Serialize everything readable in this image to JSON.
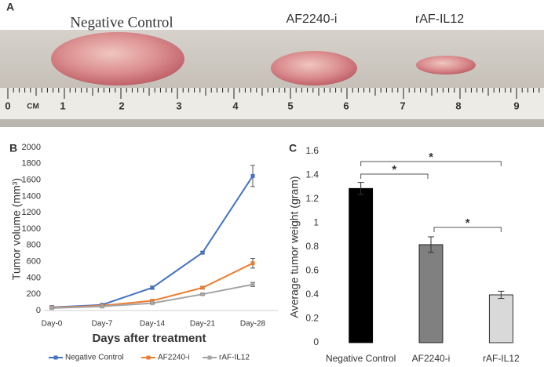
{
  "photo": {
    "label": "A",
    "captions": [
      "Negative Control",
      "AF2240-i",
      "rAF-IL12"
    ],
    "ruler": [
      "0",
      "CM",
      "1",
      "2",
      "3",
      "4",
      "5",
      "6",
      "7",
      "8",
      "9"
    ]
  },
  "chart_data": [
    {
      "type": "line",
      "panel_label": "B",
      "xlabel": "Days after treatment",
      "ylabel": "Tumor volume (mm³)",
      "categories": [
        "Day-0",
        "Day-7",
        "Day-14",
        "Day-21",
        "Day-28"
      ],
      "ylim": [
        0,
        2000
      ],
      "yticks": [
        0,
        200,
        400,
        600,
        800,
        1000,
        1200,
        1400,
        1600,
        1800,
        2000
      ],
      "legend": "bottom",
      "series": [
        {
          "name": "Negative Control",
          "color": "#4472c4",
          "values": [
            40,
            70,
            280,
            710,
            1650
          ],
          "errors": [
            20,
            15,
            20,
            15,
            130
          ]
        },
        {
          "name": "AF2240-i",
          "color": "#ed7d31",
          "values": [
            35,
            60,
            120,
            280,
            580
          ],
          "errors": [
            10,
            10,
            15,
            15,
            60
          ]
        },
        {
          "name": "rAF-IL12",
          "color": "#a5a5a5",
          "values": [
            30,
            50,
            90,
            200,
            320
          ],
          "errors": [
            10,
            10,
            10,
            10,
            25
          ]
        }
      ]
    },
    {
      "type": "bar",
      "panel_label": "C",
      "ylabel": "Average tumor weight (gram)",
      "categories": [
        "Negative Control",
        "AF2240-i",
        "rAF-IL12"
      ],
      "values": [
        1.29,
        0.82,
        0.4
      ],
      "errors": [
        0.05,
        0.065,
        0.03
      ],
      "colors": [
        "#000000",
        "#808080",
        "#d9d9d9"
      ],
      "ylim": [
        0,
        1.6
      ],
      "yticks": [
        0,
        0.2,
        0.4,
        0.6,
        0.8,
        1,
        1.2,
        1.4,
        1.6
      ],
      "annotations": [
        "*",
        "*",
        "*"
      ]
    }
  ]
}
